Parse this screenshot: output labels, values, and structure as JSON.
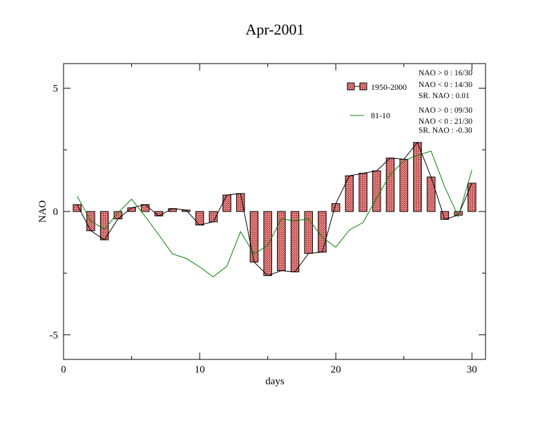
{
  "chart_data": {
    "type": "bar",
    "title": "Apr-2001",
    "xlabel": "days",
    "ylabel": "NAO",
    "xlim": [
      0,
      31
    ],
    "ylim": [
      -6,
      6
    ],
    "x_ticks": [
      0,
      10,
      20,
      30
    ],
    "x_tick_labels": [
      "0",
      "10",
      "20",
      "30"
    ],
    "y_ticks": [
      5,
      0,
      -5
    ],
    "y_tick_labels": [
      "5",
      "0",
      "-5"
    ],
    "grid": false,
    "legend_position": "top-right",
    "x": [
      1,
      2,
      3,
      4,
      5,
      6,
      7,
      8,
      9,
      10,
      11,
      12,
      13,
      14,
      15,
      16,
      17,
      18,
      19,
      20,
      21,
      22,
      23,
      24,
      25,
      26,
      27,
      28,
      29,
      30
    ],
    "series": [
      {
        "name": "1950-2000",
        "kind": "bar",
        "fill": "#f08080",
        "values": [
          0.28,
          -0.78,
          -1.15,
          -0.3,
          0.15,
          0.28,
          -0.18,
          0.12,
          0.06,
          -0.55,
          -0.42,
          0.67,
          0.73,
          -2.05,
          -2.6,
          -2.4,
          -2.45,
          -1.7,
          -1.65,
          0.32,
          1.45,
          1.55,
          1.65,
          2.17,
          2.12,
          2.8,
          1.4,
          -0.32,
          -0.15,
          1.15
        ]
      },
      {
        "name": "81-10",
        "kind": "line",
        "color": "#008000",
        "values": [
          0.62,
          -0.38,
          -0.72,
          -0.05,
          0.5,
          -0.2,
          -0.95,
          -1.72,
          -1.9,
          -2.25,
          -2.65,
          -2.22,
          -0.82,
          -1.72,
          -1.38,
          -0.3,
          -0.38,
          -0.3,
          -1.05,
          -1.45,
          -0.75,
          -0.45,
          0.55,
          1.5,
          2.05,
          2.28,
          2.45,
          1.0,
          -0.2,
          1.68
        ]
      }
    ],
    "stats": [
      [
        "NAO > 0 :  16/30",
        "NAO < 0 :  14/30",
        "SR. NAO :  0.01"
      ],
      [
        "NAO > 0 : 09/30",
        "NAO < 0 : 21/30",
        "SR. NAO : -0.30"
      ]
    ]
  }
}
